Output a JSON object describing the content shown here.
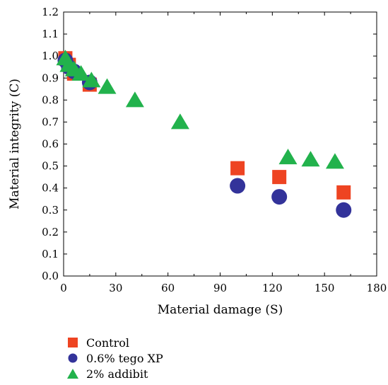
{
  "chart_data": {
    "type": "scatter",
    "xlabel": "Material damage (S)",
    "ylabel": "Material integrity (C)",
    "xlim": [
      0,
      180
    ],
    "ylim": [
      0,
      1.2
    ],
    "x_ticks": [
      "0",
      "30",
      "60",
      "90",
      "120",
      "150",
      "180"
    ],
    "y_ticks": [
      "0.0",
      "0.1",
      "0.2",
      "0.3",
      "0.4",
      "0.5",
      "0.6",
      "0.7",
      "0.8",
      "0.9",
      "1.0",
      "1.1",
      "1.2"
    ],
    "grid": false,
    "legend_position": "bottom-left",
    "series": [
      {
        "name": "Control",
        "marker": "square",
        "color": "#ee4422",
        "points": [
          [
            1,
            0.99
          ],
          [
            3,
            0.96
          ],
          [
            6,
            0.92
          ],
          [
            15,
            0.87
          ],
          [
            100,
            0.49
          ],
          [
            124,
            0.45
          ],
          [
            161,
            0.38
          ]
        ]
      },
      {
        "name": "0.6% tego XP",
        "marker": "circle",
        "color": "#33339a",
        "points": [
          [
            1,
            0.98
          ],
          [
            3,
            0.95
          ],
          [
            6,
            0.93
          ],
          [
            15,
            0.88
          ],
          [
            100,
            0.41
          ],
          [
            124,
            0.36
          ],
          [
            161,
            0.3
          ]
        ]
      },
      {
        "name": "2% addibit",
        "marker": "triangle",
        "color": "#22b24c",
        "points": [
          [
            1,
            0.99
          ],
          [
            3,
            0.96
          ],
          [
            6,
            0.94
          ],
          [
            10,
            0.92
          ],
          [
            16,
            0.89
          ],
          [
            25,
            0.86
          ],
          [
            41,
            0.8
          ],
          [
            67,
            0.7
          ],
          [
            129,
            0.54
          ],
          [
            142,
            0.53
          ],
          [
            156,
            0.52
          ]
        ]
      }
    ]
  }
}
